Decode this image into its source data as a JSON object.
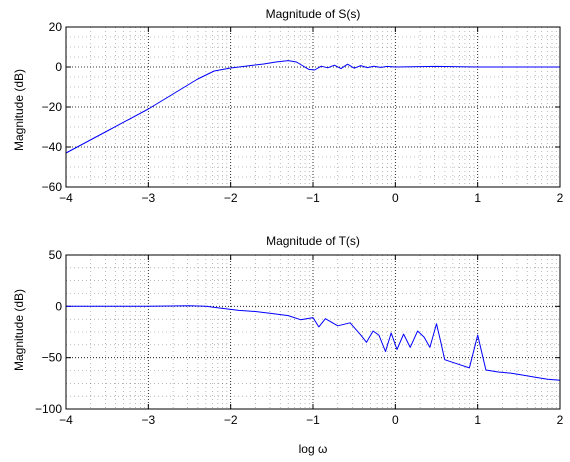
{
  "chart_data": [
    {
      "type": "line",
      "title": "Magnitude of S(s)",
      "xlabel": "",
      "ylabel": "Magnitude (dB)",
      "xscale": "linear (log frequency)",
      "xlim": [
        -4,
        2
      ],
      "ylim": [
        -60,
        20
      ],
      "xticks": [
        -4,
        -3,
        -2,
        -1,
        0,
        1,
        2
      ],
      "yticks": [
        -60,
        -40,
        -20,
        0,
        20
      ],
      "grid": "major + minor dotted",
      "series": [
        {
          "color": "#0000ff",
          "points": [
            [
              -4.0,
              -43
            ],
            [
              -3.5,
              -32
            ],
            [
              -3.0,
              -21
            ],
            [
              -2.8,
              -16
            ],
            [
              -2.6,
              -11
            ],
            [
              -2.4,
              -6
            ],
            [
              -2.2,
              -2
            ],
            [
              -2.0,
              -0.5
            ],
            [
              -1.8,
              0.5
            ],
            [
              -1.6,
              1.5
            ],
            [
              -1.45,
              2.5
            ],
            [
              -1.3,
              3.2
            ],
            [
              -1.2,
              2.5
            ],
            [
              -1.12,
              0.5
            ],
            [
              -1.05,
              -1.2
            ],
            [
              -0.98,
              -1.5
            ],
            [
              -0.9,
              0.4
            ],
            [
              -0.82,
              -0.4
            ],
            [
              -0.74,
              0.9
            ],
            [
              -0.66,
              -0.8
            ],
            [
              -0.58,
              1.4
            ],
            [
              -0.5,
              -0.6
            ],
            [
              -0.42,
              0.7
            ],
            [
              -0.34,
              -0.3
            ],
            [
              -0.26,
              0.4
            ],
            [
              -0.18,
              -0.2
            ],
            [
              -0.1,
              0.3
            ],
            [
              0.0,
              0.0
            ],
            [
              0.5,
              0.3
            ],
            [
              1.0,
              0.0
            ],
            [
              2.0,
              0.0
            ]
          ]
        }
      ]
    },
    {
      "type": "line",
      "title": "Magnitude of T(s)",
      "xlabel": "log ω",
      "ylabel": "Magnitude (dB)",
      "xlim": [
        -4,
        2
      ],
      "ylim": [
        -100,
        50
      ],
      "xticks": [
        -4,
        -3,
        -2,
        -1,
        0,
        1,
        2
      ],
      "yticks": [
        -100,
        -50,
        0,
        50
      ],
      "grid": "major + minor dotted",
      "series": [
        {
          "color": "#0000ff",
          "points": [
            [
              -4.0,
              0
            ],
            [
              -3.0,
              0
            ],
            [
              -2.5,
              0.5
            ],
            [
              -2.3,
              0
            ],
            [
              -2.1,
              -2
            ],
            [
              -1.9,
              -4
            ],
            [
              -1.7,
              -5
            ],
            [
              -1.5,
              -7
            ],
            [
              -1.3,
              -9
            ],
            [
              -1.15,
              -13
            ],
            [
              -1.0,
              -11
            ],
            [
              -0.93,
              -20
            ],
            [
              -0.85,
              -12
            ],
            [
              -0.7,
              -19
            ],
            [
              -0.55,
              -16
            ],
            [
              -0.42,
              -28
            ],
            [
              -0.35,
              -35
            ],
            [
              -0.27,
              -24
            ],
            [
              -0.2,
              -28
            ],
            [
              -0.12,
              -44
            ],
            [
              -0.05,
              -26
            ],
            [
              0.02,
              -42
            ],
            [
              0.1,
              -27
            ],
            [
              0.18,
              -40
            ],
            [
              0.27,
              -24
            ],
            [
              0.35,
              -30
            ],
            [
              0.42,
              -40
            ],
            [
              0.5,
              -17
            ],
            [
              0.55,
              -34
            ],
            [
              0.6,
              -52
            ],
            [
              0.75,
              -56
            ],
            [
              0.9,
              -60
            ],
            [
              1.0,
              -28
            ],
            [
              1.1,
              -62
            ],
            [
              1.25,
              -64
            ],
            [
              1.4,
              -65
            ],
            [
              1.55,
              -67
            ],
            [
              1.7,
              -69
            ],
            [
              1.85,
              -71
            ],
            [
              2.0,
              -72
            ]
          ]
        }
      ]
    }
  ],
  "colors": {
    "line": "#0000ff",
    "grid": "#000000",
    "axes": "#000000",
    "background": "#ffffff"
  }
}
